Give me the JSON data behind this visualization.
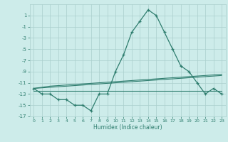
{
  "xlabel": "Humidex (Indice chaleur)",
  "x": [
    0,
    1,
    2,
    3,
    4,
    5,
    6,
    7,
    8,
    9,
    10,
    11,
    12,
    13,
    14,
    15,
    16,
    17,
    18,
    19,
    20,
    21,
    22,
    23
  ],
  "y_main": [
    -12,
    -13,
    -13,
    -14,
    -14,
    -15,
    -15,
    -16,
    -13,
    -13,
    -9,
    -6,
    -2,
    0,
    2,
    1,
    -2,
    -5,
    -8,
    -9,
    -11,
    -13,
    -12,
    -13
  ],
  "y_line1": [
    -12.0,
    -11.8,
    -11.6,
    -11.5,
    -11.4,
    -11.3,
    -11.2,
    -11.1,
    -11.0,
    -10.9,
    -10.8,
    -10.7,
    -10.6,
    -10.5,
    -10.4,
    -10.3,
    -10.2,
    -10.1,
    -10.0,
    -9.9,
    -9.8,
    -9.7,
    -9.6,
    -9.5
  ],
  "y_line2": [
    -12.0,
    -11.9,
    -11.8,
    -11.7,
    -11.6,
    -11.5,
    -11.4,
    -11.3,
    -11.2,
    -11.1,
    -11.0,
    -10.9,
    -10.8,
    -10.7,
    -10.6,
    -10.5,
    -10.4,
    -10.3,
    -10.2,
    -10.1,
    -10.0,
    -9.9,
    -9.8,
    -9.7
  ],
  "y_line3": [
    -12.5,
    -12.5,
    -12.5,
    -12.5,
    -12.5,
    -12.5,
    -12.5,
    -12.5,
    -12.5,
    -12.5,
    -12.5,
    -12.5,
    -12.5,
    -12.5,
    -12.5,
    -12.5,
    -12.5,
    -12.5,
    -12.5,
    -12.5,
    -12.5,
    -12.5,
    -12.5,
    -12.5
  ],
  "line_color": "#2e7d6e",
  "bg_color": "#cdecea",
  "grid_color": "#aacfcc",
  "ylim": [
    -17,
    3
  ],
  "xlim": [
    -0.5,
    23.5
  ],
  "yticks": [
    1,
    -1,
    -3,
    -5,
    -7,
    -9,
    -11,
    -13,
    -15,
    -17
  ],
  "xticks": [
    0,
    1,
    2,
    3,
    4,
    5,
    6,
    7,
    8,
    9,
    10,
    11,
    12,
    13,
    14,
    15,
    16,
    17,
    18,
    19,
    20,
    21,
    22,
    23
  ]
}
